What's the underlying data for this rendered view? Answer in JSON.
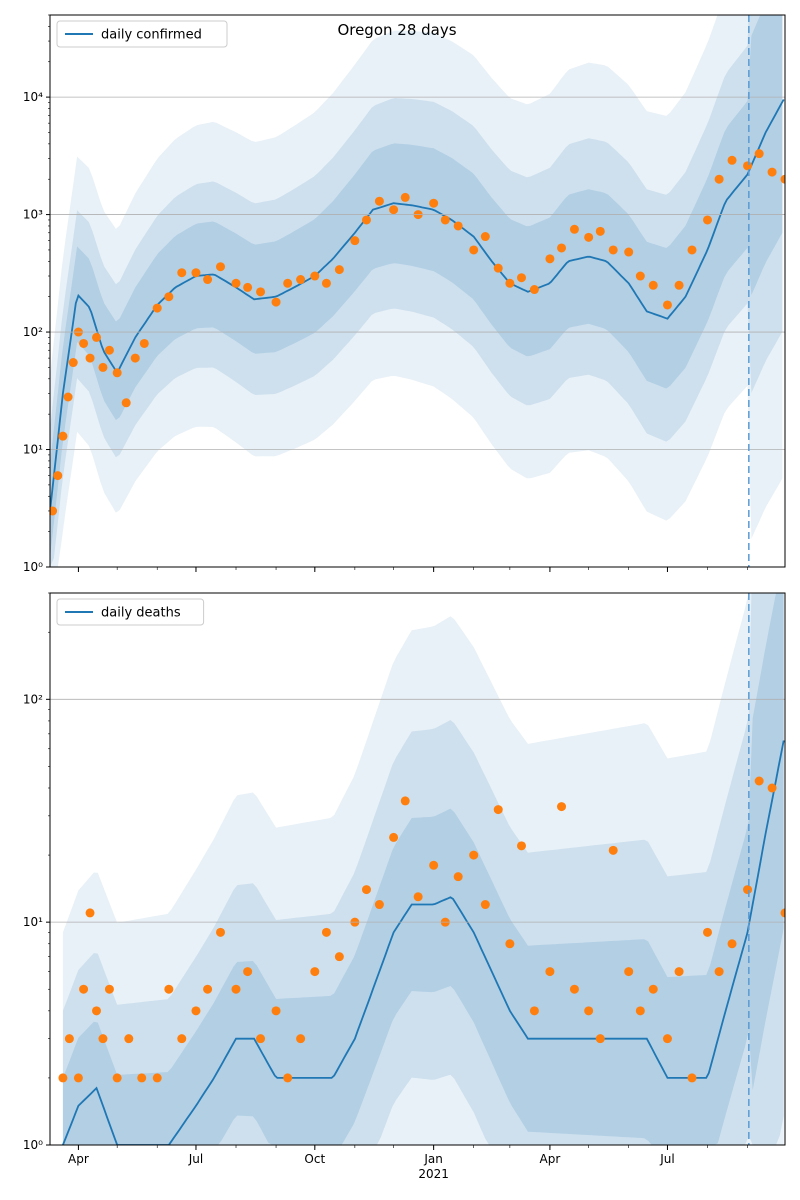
{
  "figure_title": "Oregon 28 days",
  "colors": {
    "line": "#1f77b4",
    "points": "#ff7f0e",
    "band": "#1f77b4",
    "grid": "#b0b0b0",
    "marker_line": "#5a9bd5"
  },
  "chart_data": [
    {
      "type": "line",
      "title": "Oregon 28 days",
      "yscale": "log",
      "ylim": [
        1,
        50000
      ],
      "xlim": [
        "2020-03-10",
        "2021-09-30"
      ],
      "grid": "horizontal",
      "legend": {
        "placement": "top-left",
        "entries": [
          "daily confirmed"
        ]
      },
      "x_ticks": [
        {
          "date": "2020-04-01",
          "label": "Apr"
        },
        {
          "date": "2020-07-01",
          "label": "Jul"
        },
        {
          "date": "2020-10-01",
          "label": "Oct"
        },
        {
          "date": "2021-01-01",
          "label": "Jan",
          "sublabel": "2021"
        },
        {
          "date": "2021-04-01",
          "label": "Apr"
        },
        {
          "date": "2021-07-01",
          "label": "Jul"
        }
      ],
      "y_ticks": [
        {
          "value": 1,
          "label": "10⁰"
        },
        {
          "value": 10,
          "label": "10¹"
        },
        {
          "value": 100,
          "label": "10²"
        },
        {
          "value": 1000,
          "label": "10³"
        },
        {
          "value": 10000,
          "label": "10⁴"
        }
      ],
      "forecast_start": "2021-09-02",
      "series": [
        {
          "name": "daily confirmed",
          "kind": "model",
          "x": [
            "2020-03-10",
            "2020-03-20",
            "2020-03-31",
            "2020-04-10",
            "2020-04-20",
            "2020-05-01",
            "2020-05-15",
            "2020-06-01",
            "2020-06-15",
            "2020-07-01",
            "2020-07-15",
            "2020-08-01",
            "2020-08-15",
            "2020-09-01",
            "2020-09-15",
            "2020-10-01",
            "2020-10-15",
            "2020-11-01",
            "2020-11-15",
            "2020-12-01",
            "2020-12-15",
            "2021-01-01",
            "2021-01-15",
            "2021-02-01",
            "2021-02-15",
            "2021-03-01",
            "2021-03-15",
            "2021-04-01",
            "2021-04-15",
            "2021-05-01",
            "2021-05-15",
            "2021-06-01",
            "2021-06-15",
            "2021-07-01",
            "2021-07-15",
            "2021-08-01",
            "2021-08-15",
            "2021-09-01",
            "2021-09-15",
            "2021-09-30"
          ],
          "y": [
            3,
            30,
            210,
            160,
            70,
            45,
            90,
            170,
            240,
            300,
            310,
            240,
            190,
            200,
            240,
            300,
            420,
            700,
            1100,
            1250,
            1200,
            1100,
            900,
            650,
            400,
            260,
            220,
            260,
            400,
            440,
            400,
            260,
            150,
            130,
            200,
            500,
            1300,
            2200,
            5000,
            10000
          ]
        },
        {
          "name": "",
          "kind": "observed",
          "x": [
            "2020-03-12",
            "2020-03-16",
            "2020-03-20",
            "2020-03-24",
            "2020-03-28",
            "2020-04-01",
            "2020-04-05",
            "2020-04-10",
            "2020-04-15",
            "2020-04-20",
            "2020-04-25",
            "2020-05-01",
            "2020-05-08",
            "2020-05-15",
            "2020-05-22",
            "2020-06-01",
            "2020-06-10",
            "2020-06-20",
            "2020-07-01",
            "2020-07-10",
            "2020-07-20",
            "2020-08-01",
            "2020-08-10",
            "2020-08-20",
            "2020-09-01",
            "2020-09-10",
            "2020-09-20",
            "2020-10-01",
            "2020-10-10",
            "2020-10-20",
            "2020-11-01",
            "2020-11-10",
            "2020-11-20",
            "2020-12-01",
            "2020-12-10",
            "2020-12-20",
            "2021-01-01",
            "2021-01-10",
            "2021-01-20",
            "2021-02-01",
            "2021-02-10",
            "2021-02-20",
            "2021-03-01",
            "2021-03-10",
            "2021-03-20",
            "2021-04-01",
            "2021-04-10",
            "2021-04-20",
            "2021-05-01",
            "2021-05-10",
            "2021-05-20",
            "2021-06-01",
            "2021-06-10",
            "2021-06-20",
            "2021-07-01",
            "2021-07-10",
            "2021-07-20",
            "2021-08-01",
            "2021-08-10",
            "2021-08-20",
            "2021-09-01",
            "2021-09-10",
            "2021-09-20",
            "2021-09-30"
          ],
          "y": [
            3,
            6,
            13,
            28,
            55,
            100,
            80,
            60,
            90,
            50,
            70,
            45,
            25,
            60,
            80,
            160,
            200,
            320,
            320,
            280,
            360,
            260,
            240,
            220,
            180,
            260,
            280,
            300,
            260,
            340,
            600,
            900,
            1300,
            1100,
            1400,
            1000,
            1250,
            900,
            800,
            500,
            650,
            350,
            260,
            290,
            230,
            420,
            520,
            750,
            640,
            720,
            500,
            480,
            300,
            250,
            170,
            250,
            500,
            900,
            2000,
            2900,
            2600,
            3300,
            2300,
            2000
          ]
        }
      ]
    },
    {
      "type": "line",
      "yscale": "log",
      "ylim": [
        1,
        300
      ],
      "xlim": [
        "2020-03-10",
        "2021-09-30"
      ],
      "grid": "horizontal",
      "legend": {
        "placement": "top-left",
        "entries": [
          "daily deaths"
        ]
      },
      "x_ticks": [
        {
          "date": "2020-04-01",
          "label": "Apr"
        },
        {
          "date": "2020-07-01",
          "label": "Jul"
        },
        {
          "date": "2020-10-01",
          "label": "Oct"
        },
        {
          "date": "2021-01-01",
          "label": "Jan",
          "sublabel": "2021"
        },
        {
          "date": "2021-04-01",
          "label": "Apr"
        },
        {
          "date": "2021-07-01",
          "label": "Jul"
        }
      ],
      "y_ticks": [
        {
          "value": 1,
          "label": "10⁰"
        },
        {
          "value": 10,
          "label": "10¹"
        },
        {
          "value": 100,
          "label": "10²"
        }
      ],
      "forecast_start": "2021-09-02",
      "series": [
        {
          "name": "daily deaths",
          "kind": "model",
          "x": [
            "2020-03-20",
            "2020-04-01",
            "2020-04-15",
            "2020-05-01",
            "2020-05-20",
            "2020-06-10",
            "2020-07-01",
            "2020-07-15",
            "2020-08-01",
            "2020-08-15",
            "2020-09-01",
            "2020-09-15",
            "2020-10-01",
            "2020-10-15",
            "2020-11-01",
            "2020-11-15",
            "2020-12-01",
            "2020-12-15",
            "2021-01-01",
            "2021-01-15",
            "2021-02-01",
            "2021-02-15",
            "2021-03-01",
            "2021-03-15",
            "2021-04-01",
            "2021-04-15",
            "2021-05-01",
            "2021-05-15",
            "2021-06-01",
            "2021-06-15",
            "2021-07-01",
            "2021-07-15",
            "2021-08-01",
            "2021-08-15",
            "2021-09-01",
            "2021-09-15",
            "2021-09-30"
          ],
          "y": [
            1,
            1.5,
            1.8,
            1,
            1,
            1,
            1.5,
            2,
            3,
            3,
            2,
            2,
            2,
            2,
            3,
            5,
            9,
            12,
            12,
            13,
            9,
            6,
            4,
            3,
            3,
            3,
            3,
            3,
            3,
            3,
            2,
            2,
            2,
            4,
            9,
            25,
            70
          ]
        },
        {
          "name": "",
          "kind": "observed",
          "x": [
            "2020-03-20",
            "2020-03-25",
            "2020-04-01",
            "2020-04-05",
            "2020-04-10",
            "2020-04-15",
            "2020-04-20",
            "2020-04-25",
            "2020-05-01",
            "2020-05-10",
            "2020-05-20",
            "2020-06-01",
            "2020-06-10",
            "2020-06-20",
            "2020-07-01",
            "2020-07-10",
            "2020-07-20",
            "2020-08-01",
            "2020-08-10",
            "2020-08-20",
            "2020-09-01",
            "2020-09-10",
            "2020-09-20",
            "2020-10-01",
            "2020-10-10",
            "2020-10-20",
            "2020-11-01",
            "2020-11-10",
            "2020-11-20",
            "2020-12-01",
            "2020-12-10",
            "2020-12-20",
            "2021-01-01",
            "2021-01-10",
            "2021-01-20",
            "2021-02-01",
            "2021-02-10",
            "2021-02-20",
            "2021-03-01",
            "2021-03-10",
            "2021-03-20",
            "2021-04-01",
            "2021-04-10",
            "2021-04-20",
            "2021-05-01",
            "2021-05-10",
            "2021-05-20",
            "2021-06-01",
            "2021-06-10",
            "2021-06-20",
            "2021-07-01",
            "2021-07-10",
            "2021-07-20",
            "2021-08-01",
            "2021-08-10",
            "2021-08-20",
            "2021-09-01",
            "2021-09-10",
            "2021-09-20",
            "2021-09-30"
          ],
          "y": [
            2,
            3,
            2,
            5,
            11,
            4,
            3,
            5,
            2,
            3,
            2,
            2,
            5,
            3,
            4,
            5,
            9,
            5,
            6,
            3,
            4,
            2,
            3,
            6,
            9,
            7,
            10,
            14,
            12,
            24,
            35,
            13,
            18,
            10,
            16,
            20,
            12,
            32,
            8,
            22,
            4,
            6,
            33,
            5,
            4,
            3,
            21,
            6,
            4,
            5,
            3,
            6,
            2,
            9,
            6,
            8,
            14,
            43,
            40,
            11
          ]
        }
      ]
    }
  ]
}
